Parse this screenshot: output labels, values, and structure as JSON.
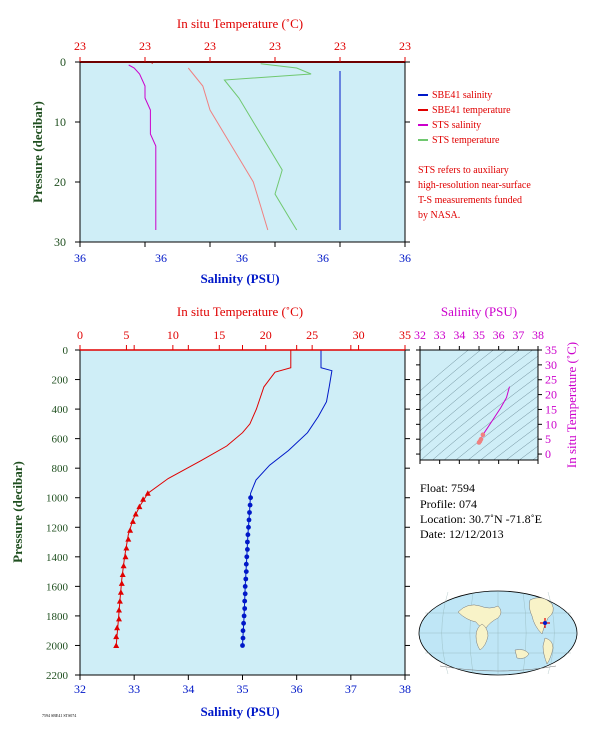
{
  "colors": {
    "plot_bg": "#cfeef7",
    "red": "#e00000",
    "blue": "#0018c8",
    "magenta": "#cc00cc",
    "green": "#70c870",
    "pink": "#f08080",
    "dark_green": "#1f4f1f",
    "gridline_gray": "#6a8a96"
  },
  "top_panel": {
    "temp_axis_title": "In situ Temperature (˚C)",
    "temp_tick_labels": [
      "23",
      "23",
      "23",
      "23",
      "23",
      "23"
    ],
    "salinity_axis_title": "Salinity (PSU)",
    "salinity_tick_labels": [
      "36",
      "36",
      "36",
      "36",
      "36"
    ],
    "pressure_axis_title": "Pressure (decibar)",
    "pressure_tick_labels": [
      "0",
      "10",
      "20",
      "30"
    ]
  },
  "legend": {
    "items": [
      {
        "label": "SBE41 salinity",
        "color": "#0018c8"
      },
      {
        "label": "SBE41 temperature",
        "color": "#e00000"
      },
      {
        "label": "STS salinity",
        "color": "#cc00cc"
      },
      {
        "label": "STS temperature",
        "color": "#70c870"
      }
    ],
    "note_lines": [
      "STS refers to auxiliary",
      "high-resolution near-surface",
      "T-S measurements funded",
      "by NASA."
    ]
  },
  "bottom_panel": {
    "temp_axis_title": "In situ Temperature (˚C)",
    "salinity_axis_title": "Salinity (PSU)",
    "pressure_axis_title": "Pressure (decibar)"
  },
  "ts_panel": {
    "salinity_axis_title": "Salinity (PSU)",
    "temp_axis_title": "In situ Temperature (˚C)",
    "salinity_ticks": [
      32,
      33,
      34,
      35,
      36,
      37,
      38
    ],
    "temp_ticks": [
      0,
      5,
      10,
      15,
      20,
      25,
      30,
      35
    ]
  },
  "info": {
    "float": "Float:  7594",
    "profile": "Profile:  074",
    "location": "Location:  30.7˚N  -71.8˚E",
    "date": "Date:  12/12/2013"
  },
  "footer": {
    "tiny_text": "7594 SBE41 STS074"
  },
  "chart_data": [
    {
      "type": "line",
      "title": "",
      "note": "near-surface STS/SBE41 profile (0-30 decibar)",
      "xlabel": "Salinity (PSU)",
      "x2label": "In situ Temperature (˚C)",
      "ylabel": "Pressure (decibar)",
      "ylim": [
        0,
        30
      ],
      "series": [
        {
          "name": "SBE41 salinity",
          "color": "#0018c8",
          "points": [
            [
              36.43,
              1.5
            ],
            [
              36.43,
              3.0
            ],
            [
              36.43,
              5.0
            ],
            [
              36.43,
              8.0
            ],
            [
              36.43,
              12.0
            ],
            [
              36.43,
              16.0
            ],
            [
              36.43,
              20.0
            ],
            [
              36.43,
              24.0
            ],
            [
              36.43,
              28.0
            ]
          ]
        },
        {
          "name": "SBE41 temperature",
          "color": "#e00000",
          "points": [
            [
              22.9,
              0.0
            ],
            [
              22.9,
              0.3
            ]
          ]
        },
        {
          "name": "STS salinity",
          "color": "#cc00cc",
          "points": [
            [
              36.04,
              0.5
            ],
            [
              36.05,
              1.0
            ],
            [
              36.06,
              2.0
            ],
            [
              36.07,
              4.0
            ],
            [
              36.07,
              6.0
            ],
            [
              36.08,
              8.0
            ],
            [
              36.08,
              10.0
            ],
            [
              36.08,
              12.0
            ],
            [
              36.09,
              14.0
            ],
            [
              36.09,
              16.0
            ],
            [
              36.09,
              18.0
            ],
            [
              36.09,
              20.0
            ],
            [
              36.09,
              22.0
            ],
            [
              36.09,
              24.0
            ],
            [
              36.09,
              26.0
            ],
            [
              36.09,
              28.0
            ]
          ]
        },
        {
          "name": "STS temperature",
          "color": "#70c870",
          "points": [
            [
              23.05,
              0.3
            ],
            [
              23.1,
              1.0
            ],
            [
              23.12,
              2.0
            ],
            [
              23.0,
              3.0
            ],
            [
              23.02,
              6.0
            ],
            [
              23.04,
              10.0
            ],
            [
              23.06,
              14.0
            ],
            [
              23.08,
              18.0
            ],
            [
              23.07,
              22.0
            ],
            [
              23.09,
              26.0
            ],
            [
              23.1,
              28.0
            ]
          ]
        }
      ]
    },
    {
      "type": "line",
      "title": "",
      "note": "full-depth profile",
      "xlabel": "Salinity (PSU)",
      "x2label": "In situ Temperature (˚C)",
      "ylabel": "Pressure (decibar)",
      "xlim": [
        32,
        38
      ],
      "x2lim": [
        0,
        35
      ],
      "ylim": [
        0,
        2200
      ],
      "x_ticks": [
        32,
        33,
        34,
        35,
        36,
        37,
        38
      ],
      "x2_ticks": [
        0,
        5,
        10,
        15,
        20,
        25,
        30,
        35
      ],
      "y_ticks": [
        0,
        200,
        400,
        600,
        800,
        1000,
        1200,
        1400,
        1600,
        1800,
        2000,
        2200
      ],
      "series": [
        {
          "name": "Temperature",
          "axis": "x2",
          "color": "#e00000",
          "points": [
            [
              22.7,
              0
            ],
            [
              22.7,
              120
            ],
            [
              21.0,
              150
            ],
            [
              19.8,
              250
            ],
            [
              19.0,
              400
            ],
            [
              18.3,
              500
            ],
            [
              17.5,
              560
            ],
            [
              15.8,
              650
            ],
            [
              13.0,
              750
            ],
            [
              9.5,
              870
            ],
            [
              7.3,
              970
            ],
            [
              6.5,
              1050
            ],
            [
              5.7,
              1150
            ],
            [
              5.2,
              1250
            ],
            [
              4.8,
              1400
            ],
            [
              4.5,
              1550
            ],
            [
              4.3,
              1700
            ],
            [
              4.1,
              1850
            ],
            [
              3.9,
              2000
            ]
          ],
          "markers": [
            [
              7.3,
              970
            ],
            [
              6.8,
              1010
            ],
            [
              6.4,
              1060
            ],
            [
              6.0,
              1110
            ],
            [
              5.7,
              1160
            ],
            [
              5.4,
              1220
            ],
            [
              5.2,
              1280
            ],
            [
              5.0,
              1340
            ],
            [
              4.9,
              1400
            ],
            [
              4.7,
              1460
            ],
            [
              4.6,
              1520
            ],
            [
              4.5,
              1580
            ],
            [
              4.4,
              1640
            ],
            [
              4.3,
              1700
            ],
            [
              4.2,
              1760
            ],
            [
              4.2,
              1820
            ],
            [
              4.0,
              1880
            ],
            [
              3.9,
              1940
            ],
            [
              3.9,
              2000
            ]
          ]
        },
        {
          "name": "Salinity",
          "axis": "x",
          "color": "#0018c8",
          "points": [
            [
              36.45,
              0
            ],
            [
              36.45,
              120
            ],
            [
              36.65,
              140
            ],
            [
              36.6,
              250
            ],
            [
              36.55,
              350
            ],
            [
              36.4,
              450
            ],
            [
              36.2,
              560
            ],
            [
              35.85,
              680
            ],
            [
              35.5,
              780
            ],
            [
              35.25,
              880
            ],
            [
              35.15,
              970
            ],
            [
              35.13,
              1100
            ],
            [
              35.1,
              1250
            ],
            [
              35.08,
              1400
            ],
            [
              35.05,
              1600
            ],
            [
              35.03,
              1800
            ],
            [
              35.0,
              2000
            ]
          ],
          "markers": [
            [
              35.15,
              1000
            ],
            [
              35.14,
              1050
            ],
            [
              35.13,
              1100
            ],
            [
              35.12,
              1150
            ],
            [
              35.11,
              1200
            ],
            [
              35.1,
              1250
            ],
            [
              35.09,
              1300
            ],
            [
              35.09,
              1350
            ],
            [
              35.08,
              1400
            ],
            [
              35.07,
              1450
            ],
            [
              35.07,
              1500
            ],
            [
              35.06,
              1550
            ],
            [
              35.05,
              1600
            ],
            [
              35.05,
              1650
            ],
            [
              35.04,
              1700
            ],
            [
              35.04,
              1750
            ],
            [
              35.03,
              1800
            ],
            [
              35.02,
              1850
            ],
            [
              35.01,
              1900
            ],
            [
              35.01,
              1950
            ],
            [
              35.0,
              2000
            ]
          ]
        }
      ]
    },
    {
      "type": "scatter",
      "title": "",
      "note": "T-S diagram with density isolines",
      "xlabel": "Salinity (PSU)",
      "ylabel": "In situ Temperature (˚C)",
      "xlim": [
        32,
        38
      ],
      "ylim": [
        -2,
        35
      ],
      "series": [
        {
          "name": "T-S",
          "color": "#cc00cc",
          "points": [
            [
              36.55,
              22.7
            ],
            [
              36.4,
              19.0
            ],
            [
              36.1,
              15.5
            ],
            [
              35.7,
              11.5
            ],
            [
              35.4,
              8.5
            ],
            [
              35.2,
              6.5
            ],
            [
              35.1,
              5.0
            ],
            [
              35.05,
              4.3
            ],
            [
              35.0,
              3.9
            ]
          ]
        }
      ]
    }
  ]
}
